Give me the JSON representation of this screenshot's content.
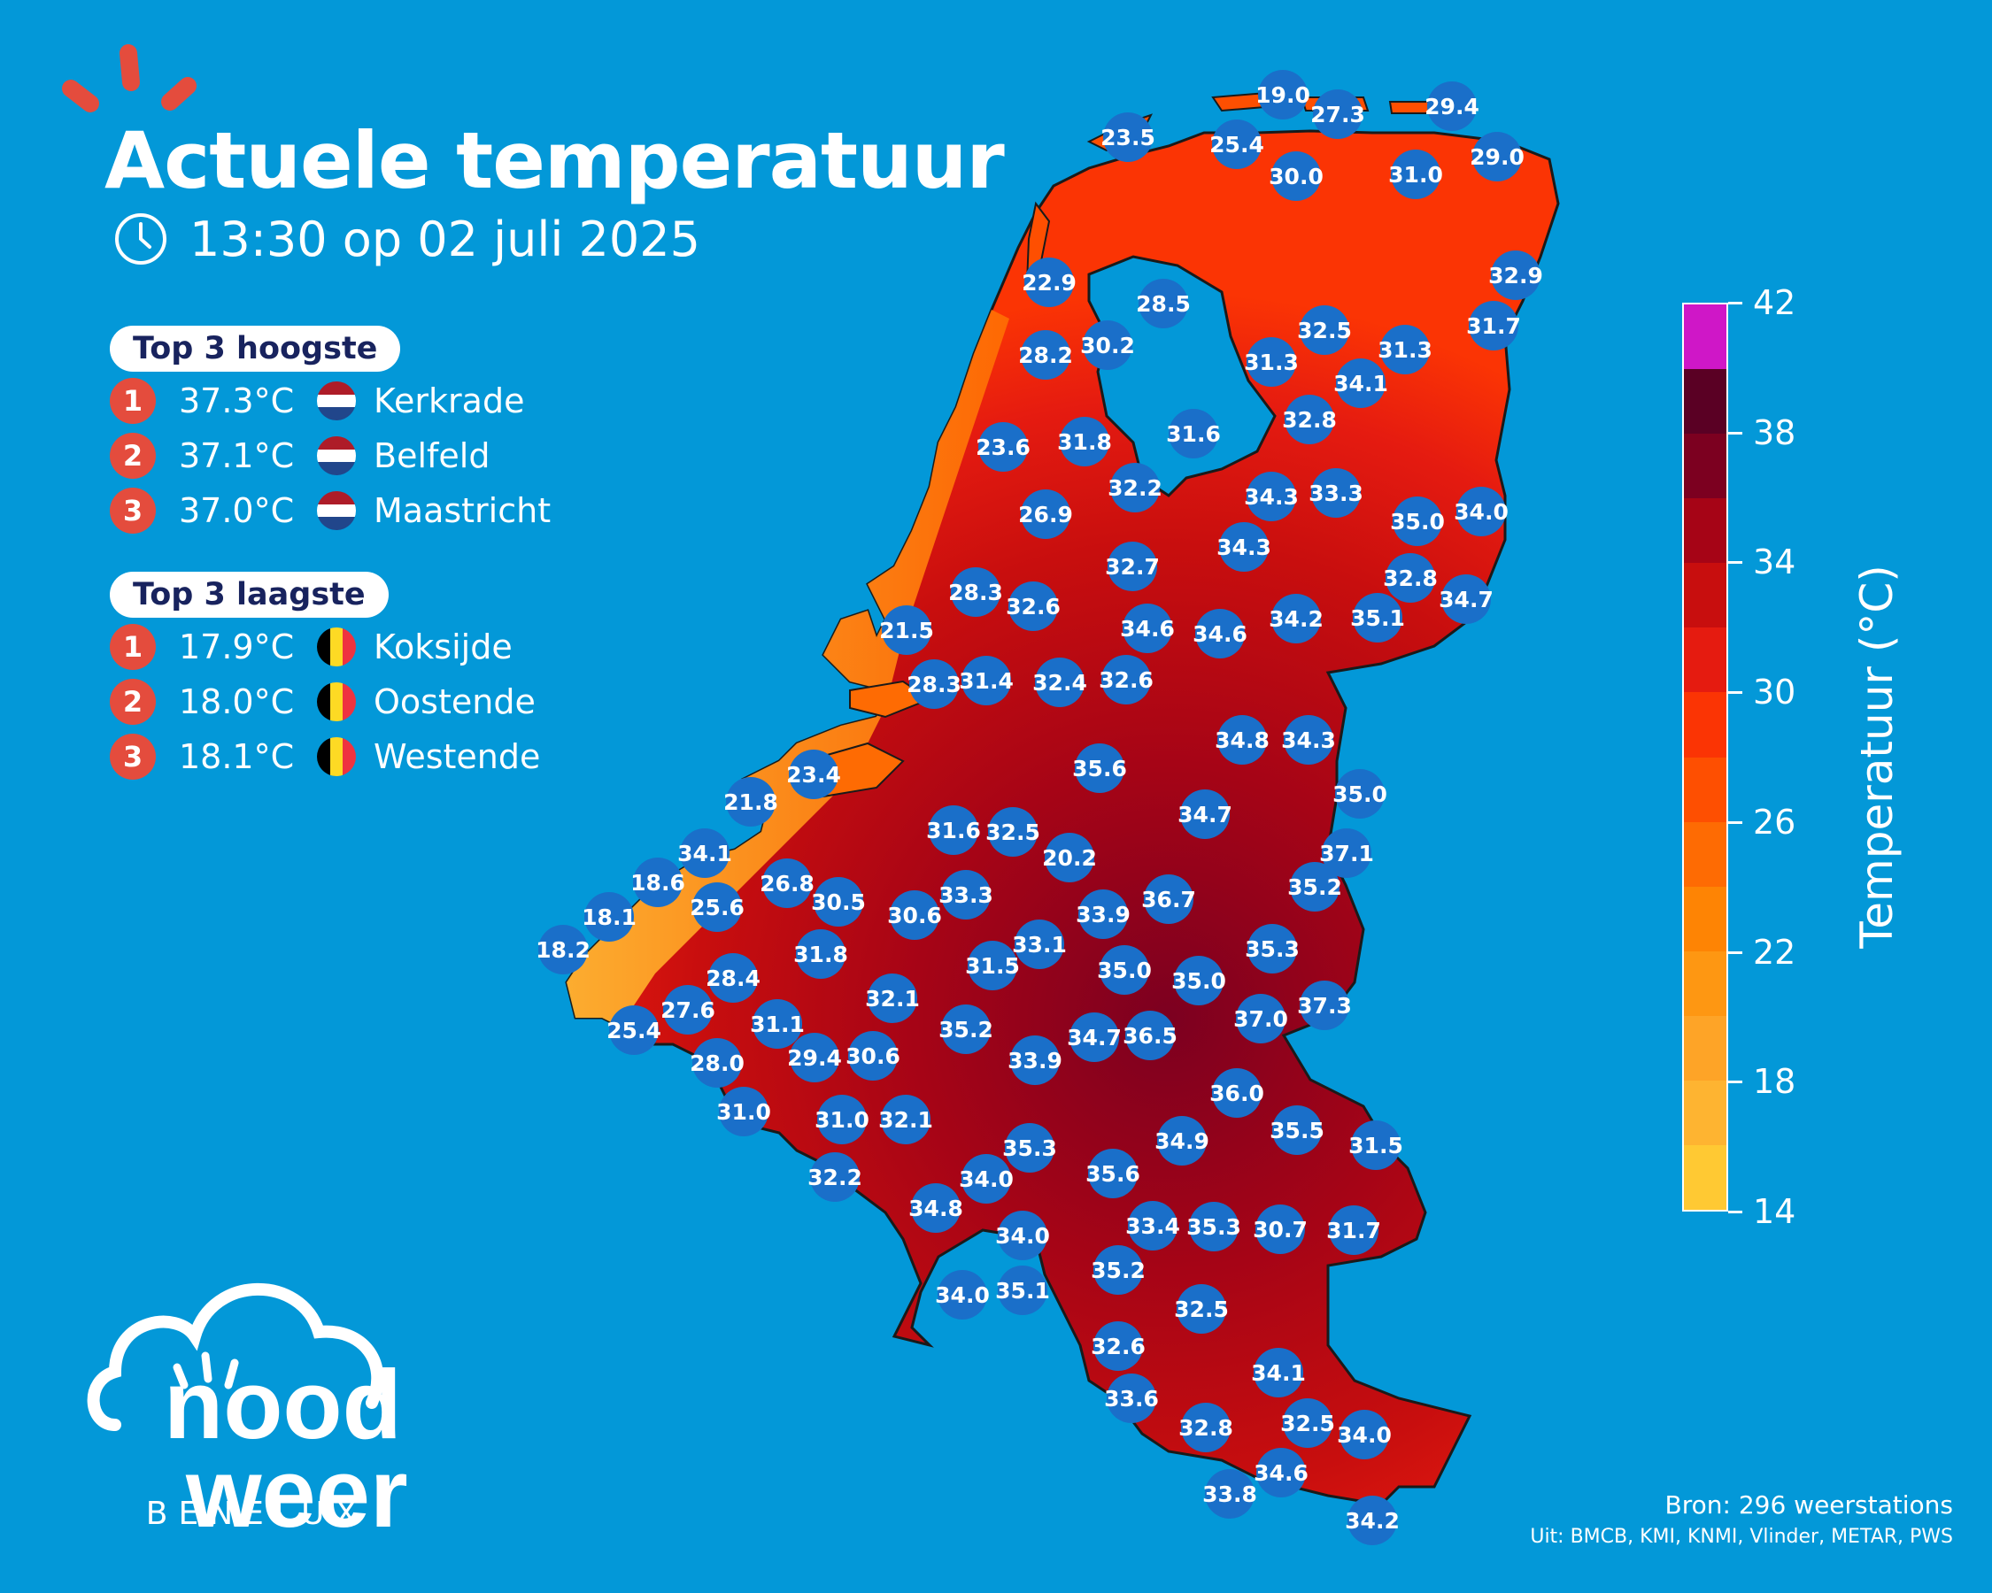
{
  "header": {
    "title": "Actuele temperatuur",
    "time": "13:30 op 02 juli 2025"
  },
  "top_high": {
    "label": "Top 3 hoogste",
    "items": [
      {
        "rank": "1",
        "temp": "37.3°C",
        "city": "Kerkrade",
        "country": "NL"
      },
      {
        "rank": "2",
        "temp": "37.1°C",
        "city": "Belfeld",
        "country": "NL"
      },
      {
        "rank": "3",
        "temp": "37.0°C",
        "city": "Maastricht",
        "country": "NL"
      }
    ]
  },
  "top_low": {
    "label": "Top 3 laagste",
    "items": [
      {
        "rank": "1",
        "temp": "17.9°C",
        "city": "Koksijde",
        "country": "BE"
      },
      {
        "rank": "2",
        "temp": "18.0°C",
        "city": "Oostende",
        "country": "BE"
      },
      {
        "rank": "3",
        "temp": "18.1°C",
        "city": "Westende",
        "country": "BE"
      }
    ]
  },
  "legend": {
    "title": "Temperatuur (°C)",
    "ticks": [
      "42",
      "38",
      "34",
      "30",
      "26",
      "22",
      "18",
      "14"
    ],
    "colors": [
      "#cf17c7",
      "#5a0024",
      "#7c0020",
      "#a60416",
      "#c80e0e",
      "#e51b10",
      "#fb3404",
      "#fe4f01",
      "#fe6b03",
      "#fe8404",
      "#fe9712",
      "#fea427",
      "#feb431",
      "#ffc933"
    ]
  },
  "colors": {
    "background": "#0398d8",
    "station_dot": "#1a6fc9",
    "rank_badge": "#e44c3d"
  },
  "logo": {
    "line1": "nood",
    "line2": "weer",
    "sub": "BENELUX"
  },
  "source": {
    "line1": "Bron: 296 weerstations",
    "line2": "Uit: BMCB, KMI, KNMI, Vlinder, METAR, PWS"
  },
  "stations": [
    "19.0",
    "27.3",
    "29.4",
    "23.5",
    "25.4",
    "30.0",
    "31.0",
    "29.0",
    "22.9",
    "28.5",
    "32.9",
    "28.2",
    "30.2",
    "32.5",
    "31.3",
    "31.7",
    "31.3",
    "34.1",
    "23.6",
    "31.8",
    "31.6",
    "32.8",
    "32.2",
    "34.3",
    "33.3",
    "26.9",
    "35.0",
    "34.0",
    "34.3",
    "32.7",
    "32.8",
    "28.3",
    "32.6",
    "34.7",
    "21.5",
    "34.6",
    "34.6",
    "34.2",
    "35.1",
    "28.3",
    "31.4",
    "32.4",
    "32.6",
    "34.8",
    "34.3",
    "23.4",
    "35.6",
    "21.8",
    "35.0",
    "34.7",
    "31.6",
    "32.5",
    "20.2",
    "37.1",
    "34.1",
    "18.6",
    "26.8",
    "25.6",
    "30.5",
    "33.3",
    "35.2",
    "18.1",
    "30.6",
    "33.9",
    "36.7",
    "18.2",
    "31.8",
    "33.1",
    "35.3",
    "28.4",
    "31.5",
    "35.0",
    "35.0",
    "27.6",
    "32.1",
    "37.3",
    "25.4",
    "31.1",
    "35.2",
    "37.0",
    "29.4",
    "30.6",
    "34.7",
    "36.5",
    "28.0",
    "33.9",
    "36.0",
    "31.0",
    "31.0",
    "32.1",
    "35.5",
    "31.5",
    "35.3",
    "34.9",
    "32.2",
    "34.0",
    "35.6",
    "34.8",
    "33.4",
    "35.3",
    "30.7",
    "31.7",
    "34.0",
    "35.2",
    "34.0",
    "35.1",
    "32.5",
    "32.6",
    "34.1",
    "33.6",
    "32.5",
    "32.8",
    "34.0",
    "34.6",
    "33.8",
    "34.2"
  ]
}
